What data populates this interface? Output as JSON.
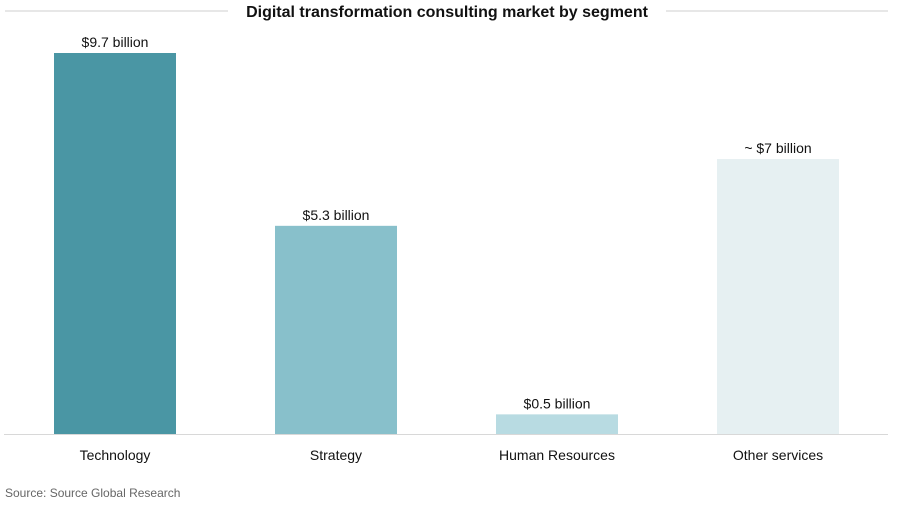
{
  "chart_data": {
    "type": "bar",
    "title": "Digital transformation consulting market by segment",
    "categories": [
      "Technology",
      "Strategy",
      "Human Resources",
      "Other services"
    ],
    "values": [
      9.7,
      5.3,
      0.5,
      7
    ],
    "value_labels": [
      "$9.7 billion",
      "$5.3 billion",
      "$0.5 billion",
      "~ $7 billion"
    ],
    "colors": [
      "#4a96a4",
      "#88c0cb",
      "#b8dbe2",
      "#e6f0f2"
    ],
    "ylim": [
      0,
      9.7
    ],
    "xlabel": "",
    "ylabel": "",
    "grid": false,
    "legend": "none"
  },
  "source": "Source: Source Global Research"
}
